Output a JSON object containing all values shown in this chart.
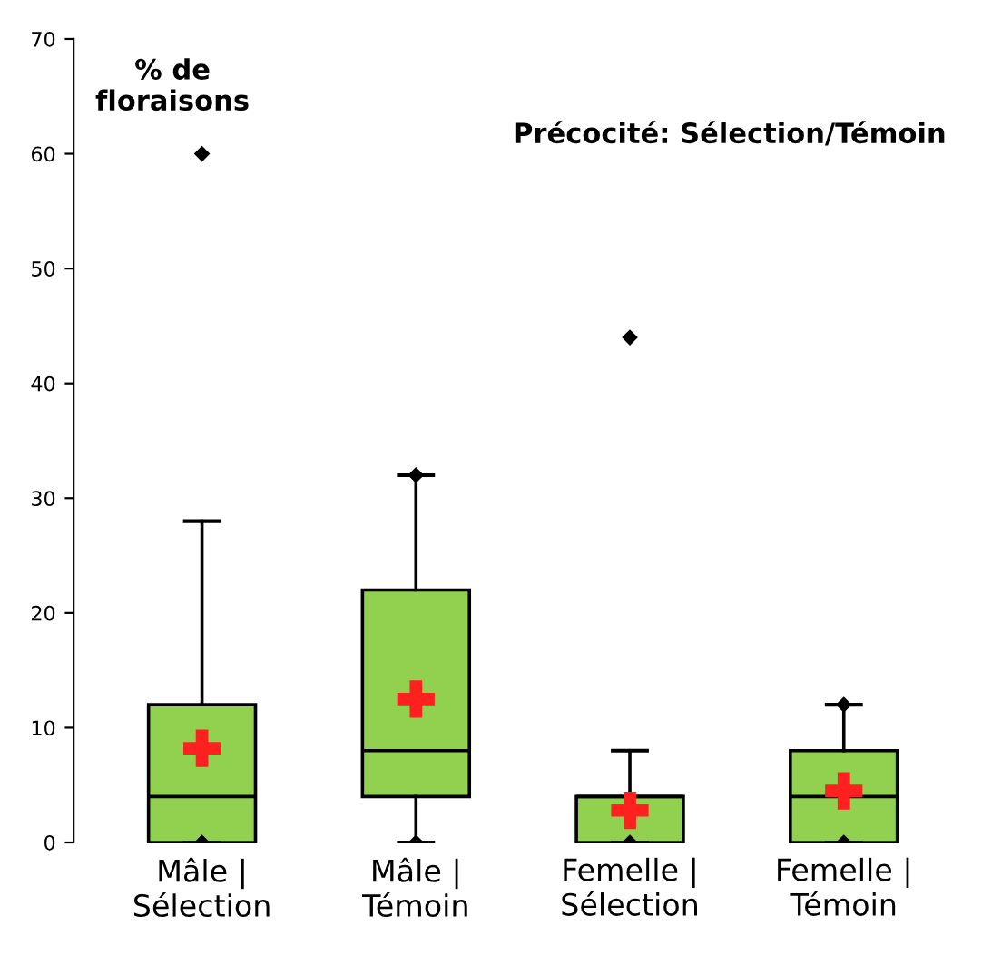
{
  "chart_data": {
    "type": "box",
    "title": "Précocité: Sélection/Témoin",
    "ylabel": "% de\nfloraisons",
    "categories": [
      "Mâle |\nSélection",
      "Mâle |\nTémoin",
      "Femelle |\nSélection",
      "Femelle |\nTémoin"
    ],
    "color": "#92d050",
    "boxes": [
      {
        "low": 0,
        "q1": 0,
        "median": 4,
        "q3": 12,
        "high": 28,
        "outliers": [
          0,
          60
        ]
      },
      {
        "low": 0,
        "q1": 4,
        "median": 8,
        "q3": 22,
        "high": 32,
        "outliers": [
          0,
          32
        ]
      },
      {
        "low": 0,
        "q1": 0,
        "median": 4,
        "q3": 4,
        "high": 8,
        "outliers": [
          0,
          44
        ]
      },
      {
        "low": 0,
        "q1": 0,
        "median": 4,
        "q3": 8,
        "high": 12,
        "outliers": [
          0,
          12
        ]
      }
    ],
    "series": [
      {
        "type": "scatter",
        "marker": "cross",
        "color": "#ff2020",
        "values": [
          8.2,
          12.5,
          2.8,
          4.5
        ]
      }
    ],
    "ylim": [
      0,
      70
    ],
    "yticks": [
      0,
      10,
      20,
      30,
      40,
      50,
      60,
      70
    ],
    "grid": false
  }
}
